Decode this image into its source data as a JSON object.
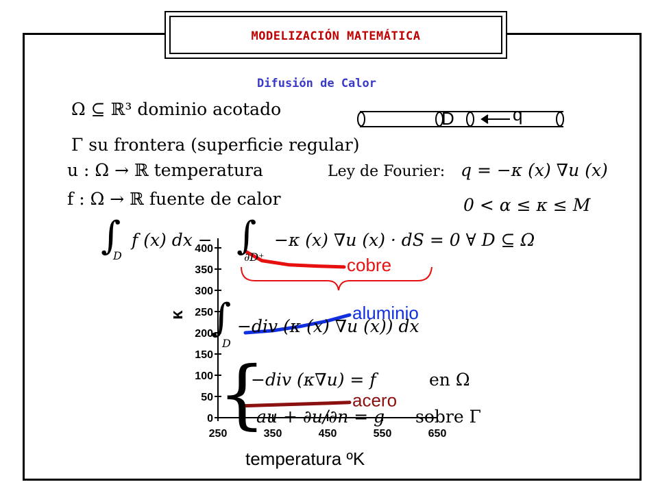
{
  "header": {
    "title": "MODELIZACIÓN MATEMÁTICA"
  },
  "subtitle": "Difusión de Calor",
  "definitions": {
    "omega": "Ω ⊆ ℝ³ dominio acotado",
    "gamma": "Γ su frontera (superficie regular)",
    "u": "u : Ω → ℝ temperatura",
    "f": "f : Ω → ℝ fuente de calor"
  },
  "fourier": {
    "label": "Ley de Fourier:",
    "formula": "q = −κ (x) ∇u (x)"
  },
  "bounds": "0 < α ≤ κ ≤ M",
  "rod": {
    "d_label": "D",
    "q_label": "q"
  },
  "equations": {
    "balance_lhs": "f (x)  dx −",
    "balance_rhs": "−κ (x) ∇u (x) · dS = 0     ∀ D ⊆ Ω",
    "domain_sub": "D",
    "boundary_sub": "∂D⁺",
    "div_integral": "−div (κ (x) ∇u (x))  dx",
    "pde": "−div (κ∇u) = f",
    "pde_en": "en  Ω",
    "bc": "au + ∂u/∂n = g",
    "bc_sobre": "sobre  Γ"
  },
  "chart_data": {
    "type": "line",
    "xlabel": "temperatura ºK",
    "ylabel": "κ",
    "xlim": [
      250,
      650
    ],
    "ylim": [
      0,
      400
    ],
    "x_ticks": [
      250,
      350,
      450,
      550,
      650
    ],
    "y_ticks": [
      0,
      50,
      100,
      150,
      200,
      250,
      300,
      350,
      400
    ],
    "series": [
      {
        "name": "cobre",
        "color": "#e61010",
        "x": [
          300,
          330,
          380,
          430,
          480
        ],
        "y": [
          392,
          370,
          360,
          357,
          355
        ]
      },
      {
        "name": "aluminio",
        "color": "#1030e0",
        "x": [
          300,
          350,
          400,
          450,
          490
        ],
        "y": [
          200,
          205,
          215,
          228,
          242
        ]
      },
      {
        "name": "acero",
        "color": "#8b1010",
        "x": [
          300,
          350,
          400,
          450,
          490
        ],
        "y": [
          28,
          30,
          32,
          34,
          36
        ]
      }
    ]
  }
}
